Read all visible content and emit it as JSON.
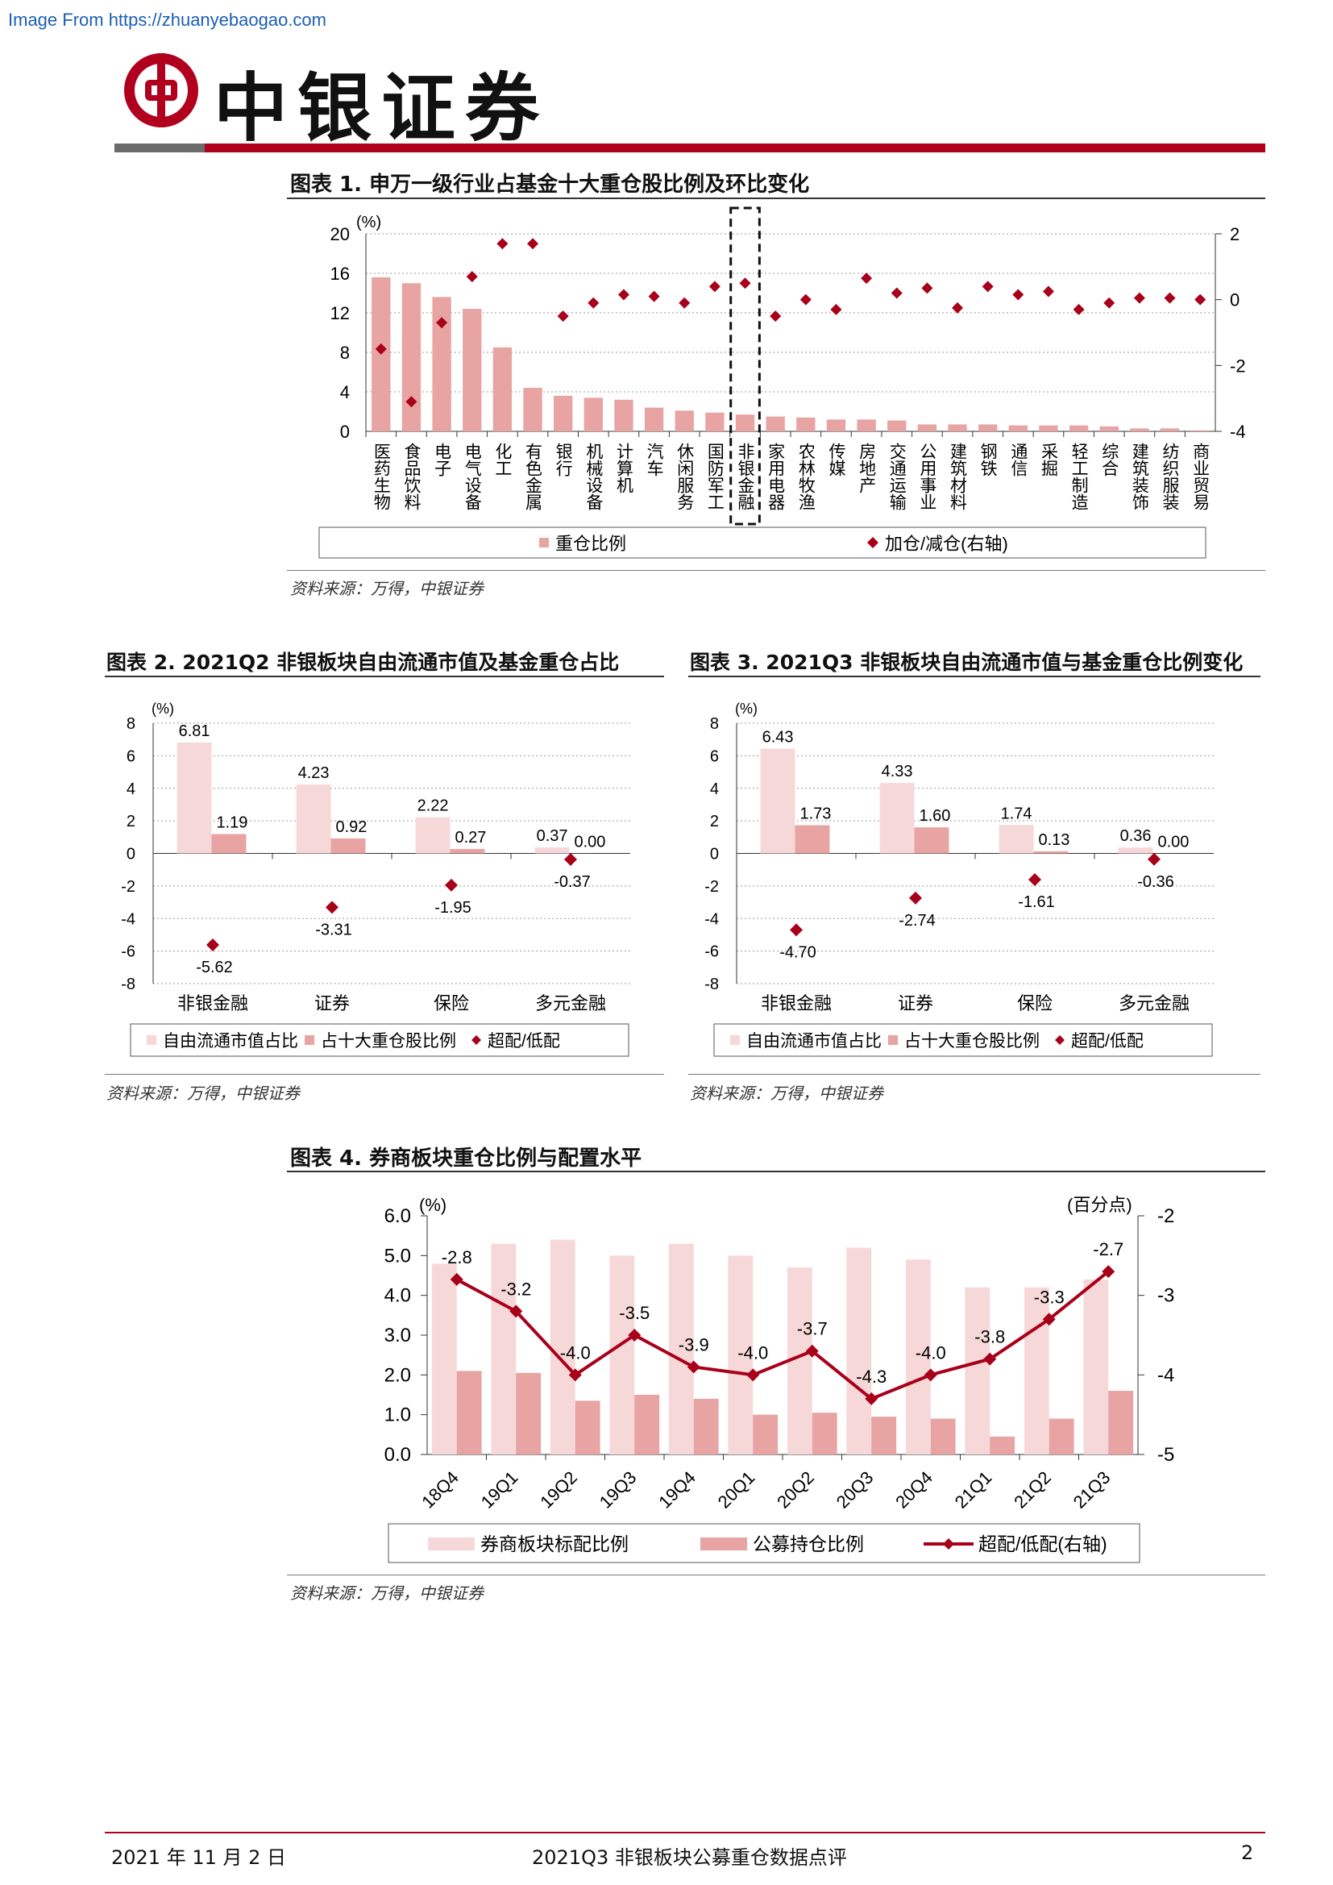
{
  "watermark": "Image From https://zhuanyebaogao.com",
  "brand": {
    "name": "中银证券",
    "primary_color": "#b0001e",
    "logo": "bank-of-china-logo"
  },
  "chart1": {
    "title": "图表 1. 申万一级行业占基金十大重仓股比例及环比变化",
    "source": "资料来源：万得，中银证券"
  },
  "chart2": {
    "title": "图表 2. 2021Q2 非银板块自由流通市值及基金重仓占比",
    "source": "资料来源：万得，中银证券"
  },
  "chart3": {
    "title": "图表 3. 2021Q3 非银板块自由流通市值与基金重仓比例变化",
    "source": "资料来源：万得，中银证券"
  },
  "chart4": {
    "title": "图表 4. 券商板块重仓比例与配置水平",
    "source": "资料来源：万得，中银证券"
  },
  "footer": {
    "date": "2021 年 11 月 2 日",
    "report": "2021Q3 非银板块公募重仓数据点评",
    "page": "2"
  },
  "chart_data": [
    {
      "type": "bar",
      "title": "",
      "left_unit": "(%)",
      "categories": [
        "医药生物",
        "食品饮料",
        "电子",
        "电气设备",
        "化工",
        "有色金属",
        "银行",
        "机械设备",
        "计算机",
        "汽车",
        "休闲服务",
        "国防军工",
        "非银金融",
        "家用电器",
        "农林牧渔",
        "传媒",
        "房地产",
        "交通运输",
        "公用事业",
        "建筑材料",
        "钢铁",
        "通信",
        "采掘",
        "轻工制造",
        "综合",
        "建筑装饰",
        "纺织服装",
        "商业贸易"
      ],
      "highlight_category": "非银金融",
      "series": [
        {
          "name": "重仓比例",
          "kind": "bar",
          "axis": "left",
          "color": "#e8a3a3",
          "values": [
            15.6,
            15.0,
            13.6,
            12.4,
            8.5,
            4.4,
            3.6,
            3.4,
            3.2,
            2.4,
            2.1,
            1.9,
            1.7,
            1.5,
            1.4,
            1.2,
            1.2,
            1.1,
            0.7,
            0.7,
            0.7,
            0.6,
            0.6,
            0.6,
            0.5,
            0.3,
            0.3,
            0.1
          ]
        },
        {
          "name": "加仓/减仓(右轴)",
          "kind": "marker",
          "axis": "right",
          "color": "#a8001a",
          "values": [
            -1.5,
            -3.1,
            -0.7,
            0.7,
            1.7,
            1.7,
            -0.5,
            -0.1,
            0.15,
            0.1,
            -0.1,
            0.4,
            0.5,
            -0.5,
            0.0,
            -0.3,
            0.65,
            0.2,
            0.35,
            -0.25,
            0.4,
            0.15,
            0.25,
            -0.3,
            -0.1,
            0.05,
            0.05,
            0.0
          ]
        }
      ],
      "ylim": [
        0,
        20
      ],
      "yticks": [
        0,
        4,
        8,
        12,
        16,
        20
      ],
      "y2lim": [
        -4,
        2
      ],
      "y2ticks": [
        -4,
        -2,
        0,
        2
      ],
      "grid": true,
      "legend": "bottom"
    },
    {
      "type": "bar",
      "title": "",
      "unit": "(%)",
      "categories": [
        "非银金融",
        "证券",
        "保险",
        "多元金融"
      ],
      "series": [
        {
          "name": "自由流通市值占比",
          "kind": "bar",
          "color": "#f7d8d8",
          "values": [
            6.81,
            4.23,
            2.22,
            0.37
          ]
        },
        {
          "name": "占十大重仓股比例",
          "kind": "bar",
          "color": "#e8a3a3",
          "values": [
            1.19,
            0.92,
            0.27,
            0.0
          ]
        },
        {
          "name": "超配/低配",
          "kind": "marker",
          "color": "#a8001a",
          "values": [
            -5.62,
            -3.31,
            -1.95,
            -0.37
          ]
        }
      ],
      "ylim": [
        -8,
        8
      ],
      "yticks": [
        -8,
        -6,
        -4,
        -2,
        0,
        2,
        4,
        6,
        8
      ],
      "grid": true,
      "legend": "bottom"
    },
    {
      "type": "bar",
      "title": "",
      "unit": "(%)",
      "categories": [
        "非银金融",
        "证券",
        "保险",
        "多元金融"
      ],
      "series": [
        {
          "name": "自由流通市值占比",
          "kind": "bar",
          "color": "#f7d8d8",
          "values": [
            6.43,
            4.33,
            1.74,
            0.36
          ]
        },
        {
          "name": "占十大重仓股比例",
          "kind": "bar",
          "color": "#e8a3a3",
          "values": [
            1.73,
            1.6,
            0.13,
            0.0
          ]
        },
        {
          "name": "超配/低配",
          "kind": "marker",
          "color": "#a8001a",
          "values": [
            -4.7,
            -2.74,
            -1.61,
            -0.36
          ]
        }
      ],
      "ylim": [
        -8,
        8
      ],
      "yticks": [
        -8,
        -6,
        -4,
        -2,
        0,
        2,
        4,
        6,
        8
      ],
      "grid": true,
      "legend": "bottom"
    },
    {
      "type": "bar",
      "title": "",
      "left_unit": "(%)",
      "right_unit": "(百分点)",
      "categories": [
        "18Q4",
        "19Q1",
        "19Q2",
        "19Q3",
        "19Q4",
        "20Q1",
        "20Q2",
        "20Q3",
        "20Q4",
        "21Q1",
        "21Q2",
        "21Q3"
      ],
      "series": [
        {
          "name": "券商板块标配比例",
          "kind": "bar",
          "axis": "left",
          "color": "#f7d8d8",
          "values": [
            4.8,
            5.3,
            5.4,
            5.0,
            5.3,
            5.0,
            4.7,
            5.2,
            4.9,
            4.2,
            4.2,
            4.4
          ]
        },
        {
          "name": "公募持仓比例",
          "kind": "bar",
          "axis": "left",
          "color": "#e8a3a3",
          "values": [
            2.1,
            2.05,
            1.35,
            1.5,
            1.4,
            1.0,
            1.05,
            0.95,
            0.9,
            0.45,
            0.9,
            1.6
          ]
        },
        {
          "name": "超配/低配(右轴)",
          "kind": "line",
          "axis": "right",
          "color": "#a8001a",
          "values": [
            -2.8,
            -3.2,
            -4.0,
            -3.5,
            -3.9,
            -4.0,
            -3.7,
            -4.3,
            -4.0,
            -3.8,
            -3.3,
            -2.7
          ]
        }
      ],
      "ylim": [
        0,
        6
      ],
      "yticks": [
        0.0,
        1.0,
        2.0,
        3.0,
        4.0,
        5.0,
        6.0
      ],
      "y2lim": [
        -5,
        -2
      ],
      "y2ticks": [
        -5,
        -4,
        -3,
        -2
      ],
      "grid": true,
      "legend": "bottom"
    }
  ]
}
